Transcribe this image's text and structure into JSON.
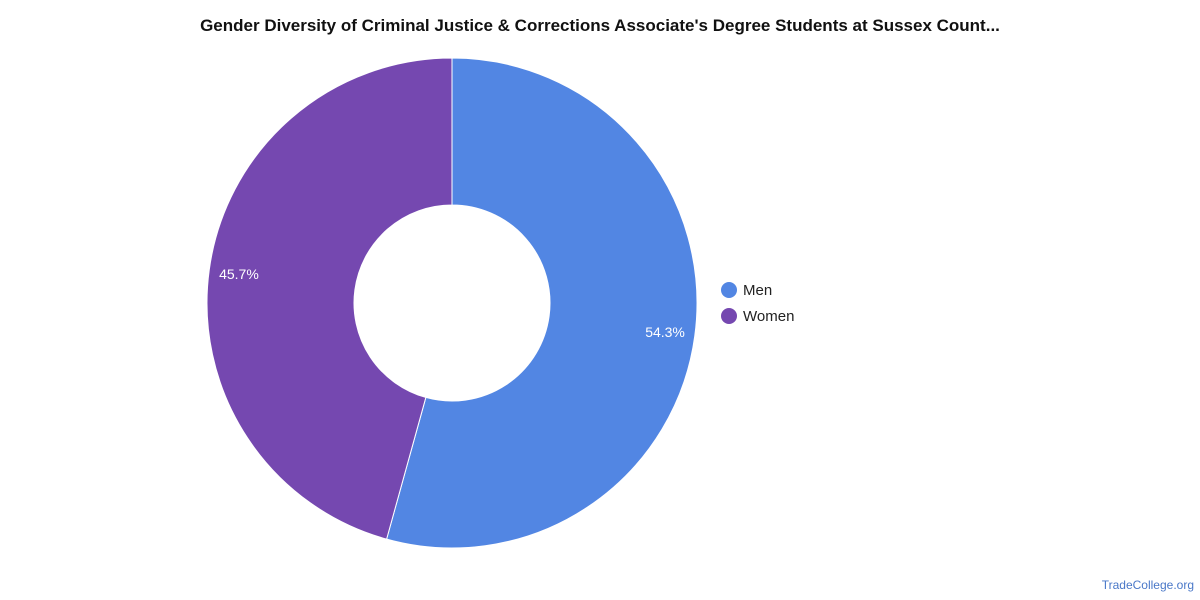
{
  "chart_data": {
    "type": "pie",
    "title": "Gender Diversity of Criminal Justice & Corrections Associate's Degree Students at Sussex Count...",
    "categories": [
      "Men",
      "Women"
    ],
    "values": [
      54.3,
      45.7
    ],
    "data_labels": [
      "54.3%",
      "45.7%"
    ],
    "colors": [
      "#5286e3",
      "#7548b0"
    ],
    "donut": true,
    "legend_position": "right"
  },
  "watermark": "TradeCollege.org"
}
